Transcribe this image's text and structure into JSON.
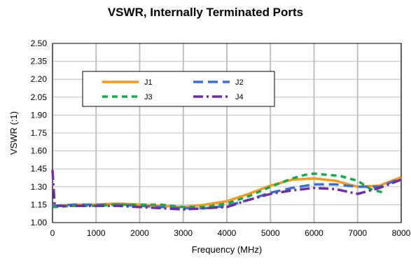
{
  "chart_data": {
    "type": "line",
    "title": "VSWR, Internally Terminated Ports",
    "xlabel": "Frequency (MHz)",
    "ylabel": "VSWR (:1)",
    "xlim": [
      0,
      8000
    ],
    "ylim": [
      1.0,
      2.5
    ],
    "x_ticks": [
      "0",
      "1000",
      "2000",
      "3000",
      "4000",
      "5000",
      "6000",
      "7000",
      "8000"
    ],
    "y_ticks": [
      "1.00",
      "1.15",
      "1.30",
      "1.45",
      "1.60",
      "1.75",
      "1.90",
      "2.05",
      "2.20",
      "2.35",
      "2.50"
    ],
    "grid": true,
    "legend_position": "upper-left inside plot",
    "series": [
      {
        "name": "J1",
        "color": "#F79A1E",
        "style": "solid",
        "points": [
          [
            0,
            1.14
          ],
          [
            500,
            1.15
          ],
          [
            1000,
            1.15
          ],
          [
            1500,
            1.16
          ],
          [
            2000,
            1.15
          ],
          [
            2500,
            1.14
          ],
          [
            3000,
            1.13
          ],
          [
            3500,
            1.15
          ],
          [
            4000,
            1.18
          ],
          [
            4500,
            1.24
          ],
          [
            5000,
            1.31
          ],
          [
            5500,
            1.36
          ],
          [
            6000,
            1.37
          ],
          [
            6500,
            1.35
          ],
          [
            7000,
            1.3
          ],
          [
            7500,
            1.31
          ],
          [
            8000,
            1.38
          ]
        ]
      },
      {
        "name": "J2",
        "color": "#3A6FD8",
        "style": "dash",
        "points": [
          [
            0,
            1.14
          ],
          [
            500,
            1.15
          ],
          [
            1000,
            1.15
          ],
          [
            1500,
            1.15
          ],
          [
            2000,
            1.14
          ],
          [
            2500,
            1.13
          ],
          [
            3000,
            1.12
          ],
          [
            3500,
            1.12
          ],
          [
            4000,
            1.14
          ],
          [
            4500,
            1.19
          ],
          [
            5000,
            1.25
          ],
          [
            5500,
            1.29
          ],
          [
            6000,
            1.32
          ],
          [
            6500,
            1.32
          ],
          [
            7000,
            1.3
          ],
          [
            7500,
            1.3
          ],
          [
            8000,
            1.37
          ]
        ]
      },
      {
        "name": "J3",
        "color": "#1BA84A",
        "style": "short-dash",
        "points": [
          [
            0,
            1.13
          ],
          [
            500,
            1.14
          ],
          [
            1000,
            1.14
          ],
          [
            1500,
            1.15
          ],
          [
            2000,
            1.15
          ],
          [
            2500,
            1.15
          ],
          [
            3000,
            1.13
          ],
          [
            3500,
            1.13
          ],
          [
            4000,
            1.16
          ],
          [
            4500,
            1.22
          ],
          [
            5000,
            1.3
          ],
          [
            5500,
            1.37
          ],
          [
            5800,
            1.4
          ],
          [
            6000,
            1.41
          ],
          [
            6300,
            1.4
          ],
          [
            6600,
            1.39
          ],
          [
            7000,
            1.35
          ],
          [
            7300,
            1.28
          ],
          [
            7600,
            1.25
          ]
        ]
      },
      {
        "name": "J4",
        "color": "#6F2F9C",
        "style": "dash-dot",
        "points": [
          [
            0,
            1.44
          ],
          [
            50,
            1.14
          ],
          [
            500,
            1.14
          ],
          [
            1000,
            1.14
          ],
          [
            1500,
            1.14
          ],
          [
            2000,
            1.13
          ],
          [
            2500,
            1.12
          ],
          [
            3000,
            1.11
          ],
          [
            3500,
            1.12
          ],
          [
            4000,
            1.13
          ],
          [
            4500,
            1.19
          ],
          [
            5000,
            1.24
          ],
          [
            5500,
            1.27
          ],
          [
            6000,
            1.29
          ],
          [
            6500,
            1.28
          ],
          [
            7000,
            1.24
          ],
          [
            7500,
            1.29
          ],
          [
            8000,
            1.36
          ]
        ]
      }
    ]
  }
}
